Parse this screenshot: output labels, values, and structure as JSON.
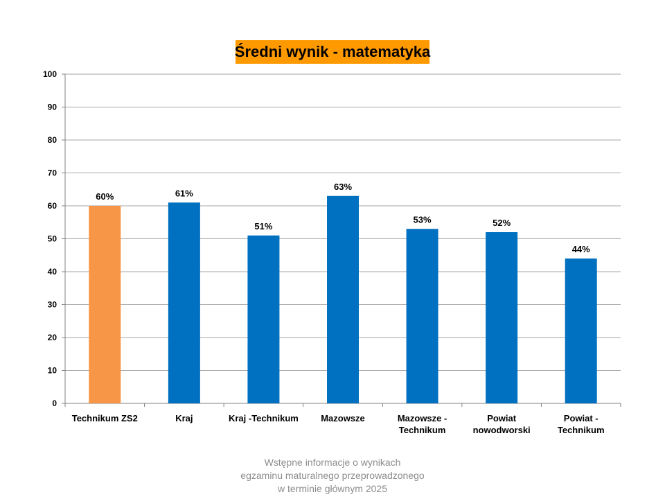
{
  "chart_data": {
    "type": "bar",
    "title": "Średni wynik - matematyka",
    "categories": [
      [
        "Technikum ZS2"
      ],
      [
        "Kraj"
      ],
      [
        "Kraj -Technikum"
      ],
      [
        "Mazowsze"
      ],
      [
        "Mazowsze -",
        "Technikum"
      ],
      [
        "Powiat",
        "nowodworski"
      ],
      [
        "Powiat -",
        "Technikum"
      ]
    ],
    "values": [
      60,
      61,
      51,
      63,
      53,
      52,
      44
    ],
    "data_labels": [
      "60%",
      "61%",
      "51%",
      "63%",
      "53%",
      "52%",
      "44%"
    ],
    "bar_colors": [
      "#f79646",
      "#0070c0",
      "#0070c0",
      "#0070c0",
      "#0070c0",
      "#0070c0",
      "#0070c0"
    ],
    "ylim": [
      0,
      100
    ],
    "yticks": [
      0,
      10,
      20,
      30,
      40,
      50,
      60,
      70,
      80,
      90,
      100
    ],
    "grid": true,
    "legend": "none",
    "title_background": "#ff9900"
  },
  "footer": {
    "lines": [
      "Wstępne informacje o wynikach",
      "egzaminu maturalnego przeprowadzonego",
      "w terminie głównym 2025"
    ]
  }
}
